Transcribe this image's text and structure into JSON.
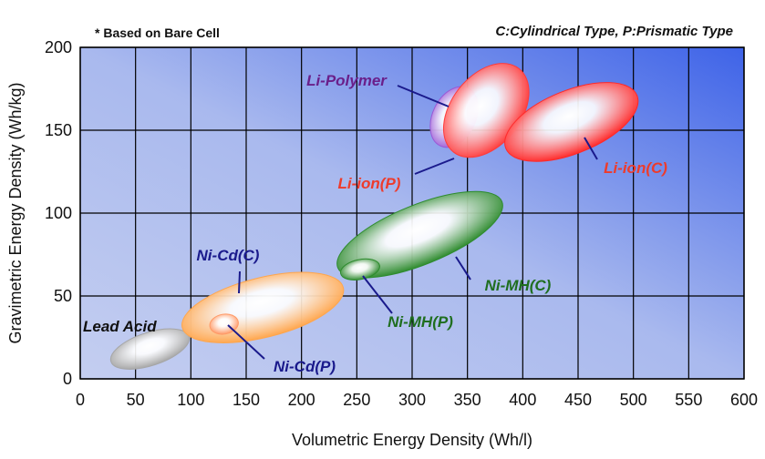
{
  "chart_data": {
    "type": "scatter",
    "title": "",
    "note_left": "* Based on Bare Cell",
    "note_right": "C:Cylindrical Type, P:Prismatic Type",
    "xlabel": "Volumetric Energy Density (Wh/l)",
    "ylabel": "Gravimetric Energy Density (Wh/kg)",
    "xlim": [
      0,
      600
    ],
    "ylim": [
      0,
      200
    ],
    "x_ticks": [
      0,
      50,
      100,
      150,
      200,
      250,
      300,
      350,
      400,
      450,
      500,
      550,
      600
    ],
    "y_ticks": [
      0,
      50,
      100,
      150,
      200
    ],
    "grid": true,
    "regions": [
      {
        "label": "Lead Acid",
        "cx": 63,
        "cy": 18,
        "rx": 37,
        "ry": 10,
        "angle": 18,
        "color": "#a6a6a6",
        "label_color": "#111111"
      },
      {
        "label": "Ni-Cd(C)",
        "cx": 165,
        "cy": 43,
        "rx": 75,
        "ry": 18,
        "angle": 14,
        "color": "#ffa64d",
        "label_color": "#1a1a8c"
      },
      {
        "label": "Ni-Cd(P)",
        "cx": 130,
        "cy": 33,
        "rx": 13,
        "ry": 6,
        "angle": 10,
        "color": "#ff9966",
        "label_color": "#1a1a8c"
      },
      {
        "label": "Ni-MH(C)",
        "cx": 307,
        "cy": 87,
        "rx": 80,
        "ry": 18,
        "angle": 22,
        "color": "#2e8b2e",
        "label_color": "#1f6e1f"
      },
      {
        "label": "Ni-MH(P)",
        "cx": 253,
        "cy": 66,
        "rx": 18,
        "ry": 6,
        "angle": 12,
        "color": "#2e8b2e",
        "label_color": "#1f6e1f"
      },
      {
        "label": "Li-Polymer",
        "cx": 338,
        "cy": 158,
        "rx": 29,
        "ry": 13,
        "angle": 64,
        "color": "#9b59d6",
        "label_color": "#6a1f8a"
      },
      {
        "label": "Li-ion(P)",
        "cx": 367,
        "cy": 162,
        "rx": 48,
        "ry": 21,
        "angle": 52,
        "color": "#ff3b3b",
        "label_color": "#ee3b2b"
      },
      {
        "label": "Li-ion(C)",
        "cx": 444,
        "cy": 155,
        "rx": 64,
        "ry": 19,
        "angle": 22,
        "color": "#ff2a2a",
        "label_color": "#ee3b2b"
      }
    ]
  }
}
